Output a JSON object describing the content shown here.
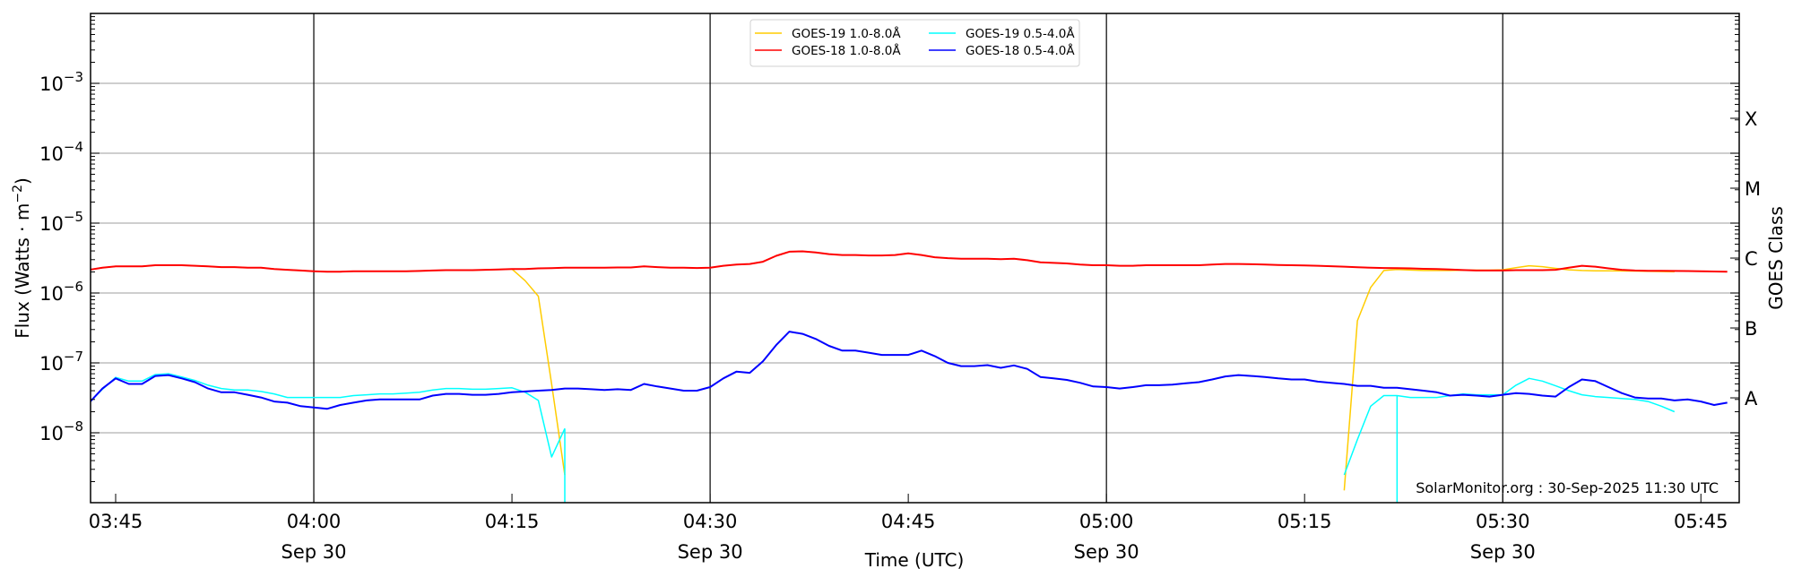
{
  "chart_data": {
    "type": "line",
    "xlabel": "Time (UTC)",
    "ylabel": "Flux (Watts · m",
    "ylabel_exponent": "−2",
    "ylabel_close": ")",
    "right_ylabel": "GOES Class",
    "yscale": "log",
    "ylim": [
      1e-09,
      0.01
    ],
    "xlim": [
      "03:43:06",
      "05:47:54"
    ],
    "grid": {
      "horizontal": "decades",
      "vertical": [
        "04:00",
        "04:30",
        "05:00",
        "05:30"
      ]
    },
    "y_ticks": [
      {
        "base": "10",
        "exp": "−3",
        "value": 0.001
      },
      {
        "base": "10",
        "exp": "−4",
        "value": 0.0001
      },
      {
        "base": "10",
        "exp": "−5",
        "value": 1e-05
      },
      {
        "base": "10",
        "exp": "−6",
        "value": 1e-06
      },
      {
        "base": "10",
        "exp": "−7",
        "value": 1e-07
      },
      {
        "base": "10",
        "exp": "−8",
        "value": 1e-08
      }
    ],
    "x_ticks": [
      {
        "time": "03:45",
        "label": "03:45",
        "date": ""
      },
      {
        "time": "04:00",
        "label": "04:00",
        "date": "Sep 30"
      },
      {
        "time": "04:15",
        "label": "04:15",
        "date": ""
      },
      {
        "time": "04:30",
        "label": "04:30",
        "date": "Sep 30"
      },
      {
        "time": "04:45",
        "label": "04:45",
        "date": ""
      },
      {
        "time": "05:00",
        "label": "05:00",
        "date": "Sep 30"
      },
      {
        "time": "05:15",
        "label": "05:15",
        "date": ""
      },
      {
        "time": "05:30",
        "label": "05:30",
        "date": "Sep 30"
      },
      {
        "time": "05:45",
        "label": "05:45",
        "date": ""
      }
    ],
    "goes_classes": [
      {
        "label": "A",
        "value": 3.16e-08
      },
      {
        "label": "B",
        "value": 3.16e-07
      },
      {
        "label": "C",
        "value": 3.16e-06
      },
      {
        "label": "M",
        "value": 3.16e-05
      },
      {
        "label": "X",
        "value": 0.000316
      }
    ],
    "legend": {
      "placement": "top-center",
      "columns": 2
    },
    "annotation": "SolarMonitor.org : 30-Sep-2025 11:30 UTC",
    "x_start": "03:43",
    "x_step_minutes": 1,
    "series": [
      {
        "name": "GOES-19 1.0-8.0Å",
        "color": "#ffcc00",
        "width": 1.5,
        "values": [
          2.15e-06,
          2.3e-06,
          2.4e-06,
          2.4e-06,
          2.4e-06,
          2.5e-06,
          2.5e-06,
          2.5e-06,
          2.45e-06,
          2.4e-06,
          2.35e-06,
          2.35e-06,
          2.3e-06,
          2.3e-06,
          2.2e-06,
          2.15e-06,
          2.1e-06,
          2.05e-06,
          2.02e-06,
          2.02e-06,
          2.05e-06,
          2.05e-06,
          2.05e-06,
          2.05e-06,
          2.05e-06,
          2.07e-06,
          2.1e-06,
          2.12e-06,
          2.12e-06,
          2.12e-06,
          2.15e-06,
          2.17e-06,
          2.2e-06,
          1.5e-06,
          9e-07,
          5e-08,
          2.5e-09,
          null,
          null,
          null,
          null,
          null,
          null,
          null,
          null,
          null,
          null,
          null,
          null,
          null,
          null,
          null,
          null,
          null,
          null,
          null,
          null,
          null,
          null,
          null,
          null,
          null,
          null,
          null,
          null,
          null,
          null,
          null,
          null,
          null,
          null,
          null,
          null,
          null,
          null,
          null,
          null,
          null,
          null,
          null,
          null,
          null,
          null,
          null,
          null,
          null,
          null,
          null,
          null,
          null,
          null,
          null,
          null,
          null,
          null,
          1.5e-09,
          4e-07,
          1.2e-06,
          2.1e-06,
          2.17e-06,
          2.13e-06,
          2.1e-06,
          2.1e-06,
          2.1e-06,
          2.12e-06,
          2.12e-06,
          2.12e-06,
          2.15e-06,
          2.3e-06,
          2.45e-06,
          2.38e-06,
          2.25e-06,
          2.15e-06,
          2.1e-06,
          2.08e-06,
          2.08e-06,
          2.07e-06,
          2.06e-06,
          2.05e-06,
          2.03e-06,
          2.02e-06
        ]
      },
      {
        "name": "GOES-18 1.0-8.0Å",
        "color": "#ff0000",
        "width": 2,
        "values": [
          2.15e-06,
          2.3e-06,
          2.4e-06,
          2.4e-06,
          2.4e-06,
          2.5e-06,
          2.5e-06,
          2.5e-06,
          2.45e-06,
          2.4e-06,
          2.35e-06,
          2.35e-06,
          2.3e-06,
          2.3e-06,
          2.2e-06,
          2.15e-06,
          2.1e-06,
          2.05e-06,
          2.02e-06,
          2.02e-06,
          2.05e-06,
          2.05e-06,
          2.05e-06,
          2.05e-06,
          2.05e-06,
          2.07e-06,
          2.1e-06,
          2.12e-06,
          2.12e-06,
          2.12e-06,
          2.15e-06,
          2.17e-06,
          2.2e-06,
          2.2e-06,
          2.25e-06,
          2.27e-06,
          2.3e-06,
          2.3e-06,
          2.3e-06,
          2.3e-06,
          2.32e-06,
          2.32e-06,
          2.4e-06,
          2.35e-06,
          2.3e-06,
          2.3e-06,
          2.28e-06,
          2.3e-06,
          2.45e-06,
          2.55e-06,
          2.6e-06,
          2.8e-06,
          3.4e-06,
          3.9e-06,
          3.95e-06,
          3.8e-06,
          3.6e-06,
          3.5e-06,
          3.5e-06,
          3.45e-06,
          3.45e-06,
          3.5e-06,
          3.7e-06,
          3.5e-06,
          3.25e-06,
          3.15e-06,
          3.1e-06,
          3.1e-06,
          3.1e-06,
          3.05e-06,
          3.1e-06,
          2.95e-06,
          2.75e-06,
          2.7e-06,
          2.65e-06,
          2.55e-06,
          2.5e-06,
          2.5e-06,
          2.45e-06,
          2.45e-06,
          2.5e-06,
          2.5e-06,
          2.5e-06,
          2.5e-06,
          2.5e-06,
          2.55e-06,
          2.6e-06,
          2.6e-06,
          2.58e-06,
          2.55e-06,
          2.52e-06,
          2.5e-06,
          2.48e-06,
          2.45e-06,
          2.42e-06,
          2.38e-06,
          2.33e-06,
          2.3e-06,
          2.28e-06,
          2.27e-06,
          2.25e-06,
          2.22e-06,
          2.2e-06,
          2.17e-06,
          2.13e-06,
          2.1e-06,
          2.1e-06,
          2.1e-06,
          2.12e-06,
          2.12e-06,
          2.12e-06,
          2.15e-06,
          2.3e-06,
          2.45e-06,
          2.38e-06,
          2.25e-06,
          2.15e-06,
          2.1e-06,
          2.08e-06,
          2.08e-06,
          2.07e-06,
          2.06e-06,
          2.05e-06,
          2.03e-06,
          2.02e-06
        ]
      },
      {
        "name": "GOES-19 0.5-4.0Å",
        "color": "#00ffff",
        "width": 1.5,
        "values": [
          2.7e-08,
          4.2e-08,
          6.2e-08,
          5.5e-08,
          5.5e-08,
          6.8e-08,
          7e-08,
          6.3e-08,
          5.6e-08,
          4.8e-08,
          4.3e-08,
          4.1e-08,
          4.1e-08,
          3.9e-08,
          3.6e-08,
          3.2e-08,
          3.2e-08,
          3.2e-08,
          3.2e-08,
          3.2e-08,
          3.4e-08,
          3.5e-08,
          3.6e-08,
          3.6e-08,
          3.7e-08,
          3.8e-08,
          4.1e-08,
          4.3e-08,
          4.3e-08,
          4.2e-08,
          4.2e-08,
          4.3e-08,
          4.4e-08,
          3.8e-08,
          2.9e-08,
          4.5e-09,
          1.15e-08,
          null,
          null,
          null,
          null,
          null,
          null,
          null,
          null,
          null,
          null,
          null,
          null,
          null,
          null,
          null,
          null,
          null,
          null,
          null,
          null,
          null,
          null,
          null,
          null,
          null,
          null,
          null,
          null,
          null,
          null,
          null,
          null,
          null,
          null,
          null,
          null,
          null,
          null,
          null,
          null,
          null,
          null,
          null,
          null,
          null,
          null,
          null,
          null,
          null,
          null,
          null,
          null,
          null,
          null,
          null,
          null,
          null,
          null,
          2.5e-09,
          8e-09,
          2.4e-08,
          3.4e-08,
          3.4e-08,
          3.2e-08,
          3.2e-08,
          3.2e-08,
          3.4e-08,
          3.6e-08,
          3.5e-08,
          3.5e-08,
          3.5e-08,
          4.8e-08,
          6e-08,
          5.5e-08,
          4.7e-08,
          4e-08,
          3.5e-08,
          3.3e-08,
          3.2e-08,
          3.1e-08,
          3e-08,
          2.8e-08,
          2.4e-08,
          2e-08
        ]
      },
      {
        "name": "GOES-18 0.5-4.0Å",
        "color": "#0000ff",
        "width": 2,
        "values": [
          2.7e-08,
          4.3e-08,
          6e-08,
          5e-08,
          5e-08,
          6.5e-08,
          6.7e-08,
          6e-08,
          5.3e-08,
          4.3e-08,
          3.8e-08,
          3.8e-08,
          3.5e-08,
          3.2e-08,
          2.8e-08,
          2.7e-08,
          2.4e-08,
          2.3e-08,
          2.2e-08,
          2.5e-08,
          2.7e-08,
          2.9e-08,
          3e-08,
          3e-08,
          3e-08,
          3e-08,
          3.4e-08,
          3.6e-08,
          3.6e-08,
          3.5e-08,
          3.5e-08,
          3.6e-08,
          3.8e-08,
          3.9e-08,
          4e-08,
          4.1e-08,
          4.3e-08,
          4.3e-08,
          4.2e-08,
          4.1e-08,
          4.2e-08,
          4.1e-08,
          5e-08,
          4.6e-08,
          4.3e-08,
          4e-08,
          4e-08,
          4.5e-08,
          6e-08,
          7.5e-08,
          7.2e-08,
          1.05e-07,
          1.8e-07,
          2.8e-07,
          2.6e-07,
          2.2e-07,
          1.75e-07,
          1.5e-07,
          1.5e-07,
          1.4e-07,
          1.3e-07,
          1.3e-07,
          1.3e-07,
          1.5e-07,
          1.25e-07,
          1e-07,
          9e-08,
          9e-08,
          9.3e-08,
          8.5e-08,
          9.2e-08,
          8.2e-08,
          6.3e-08,
          6e-08,
          5.7e-08,
          5.2e-08,
          4.6e-08,
          4.5e-08,
          4.3e-08,
          4.5e-08,
          4.8e-08,
          4.8e-08,
          4.9e-08,
          5.1e-08,
          5.3e-08,
          5.8e-08,
          6.4e-08,
          6.7e-08,
          6.5e-08,
          6.3e-08,
          6e-08,
          5.8e-08,
          5.8e-08,
          5.4e-08,
          5.2e-08,
          5e-08,
          4.7e-08,
          4.7e-08,
          4.4e-08,
          4.4e-08,
          4.2e-08,
          4e-08,
          3.8e-08,
          3.4e-08,
          3.5e-08,
          3.4e-08,
          3.3e-08,
          3.5e-08,
          3.7e-08,
          3.6e-08,
          3.4e-08,
          3.3e-08,
          4.5e-08,
          5.8e-08,
          5.5e-08,
          4.5e-08,
          3.7e-08,
          3.2e-08,
          3.1e-08,
          3.1e-08,
          2.9e-08,
          3e-08,
          2.8e-08,
          2.5e-08,
          2.7e-08
        ]
      }
    ]
  }
}
